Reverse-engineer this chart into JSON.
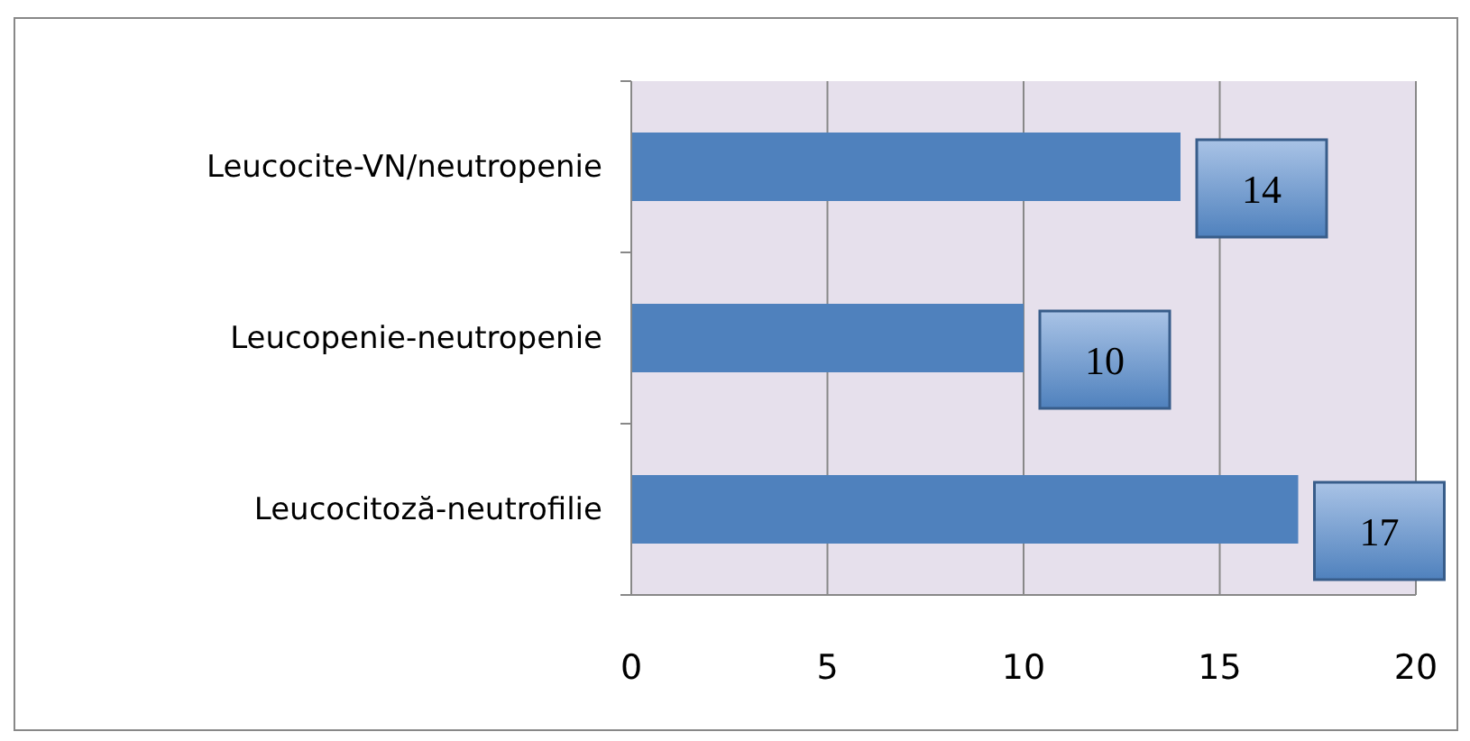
{
  "chart_data": {
    "type": "bar",
    "orientation": "horizontal",
    "categories": [
      "Leucocite-VN/neutropenie",
      "Leucopenie-neutropenie",
      "Leucocitoză-neutrofilie"
    ],
    "values": [
      14,
      10,
      17
    ],
    "color": "#4f81bd",
    "xlim": [
      0,
      20
    ],
    "xticks": [
      0,
      5,
      10,
      15,
      20
    ],
    "grid": "x",
    "data_labels": true
  }
}
